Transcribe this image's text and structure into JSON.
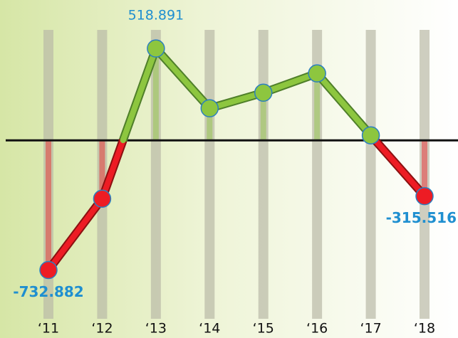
{
  "chart_data": {
    "type": "line",
    "categories": [
      "‘11",
      "‘12",
      "‘13",
      "‘14",
      "‘15",
      "‘16",
      "‘17",
      "‘18"
    ],
    "values": [
      -732.882,
      -330,
      518.891,
      181,
      269,
      378,
      28,
      -315.516
    ],
    "value_labels": [
      "-732.882",
      null,
      "518.891",
      null,
      null,
      null,
      null,
      "-315.516"
    ],
    "positive_color": "#8dc63f",
    "negative_color": "#ed1c24",
    "ylim": [
      -940,
      640
    ]
  }
}
